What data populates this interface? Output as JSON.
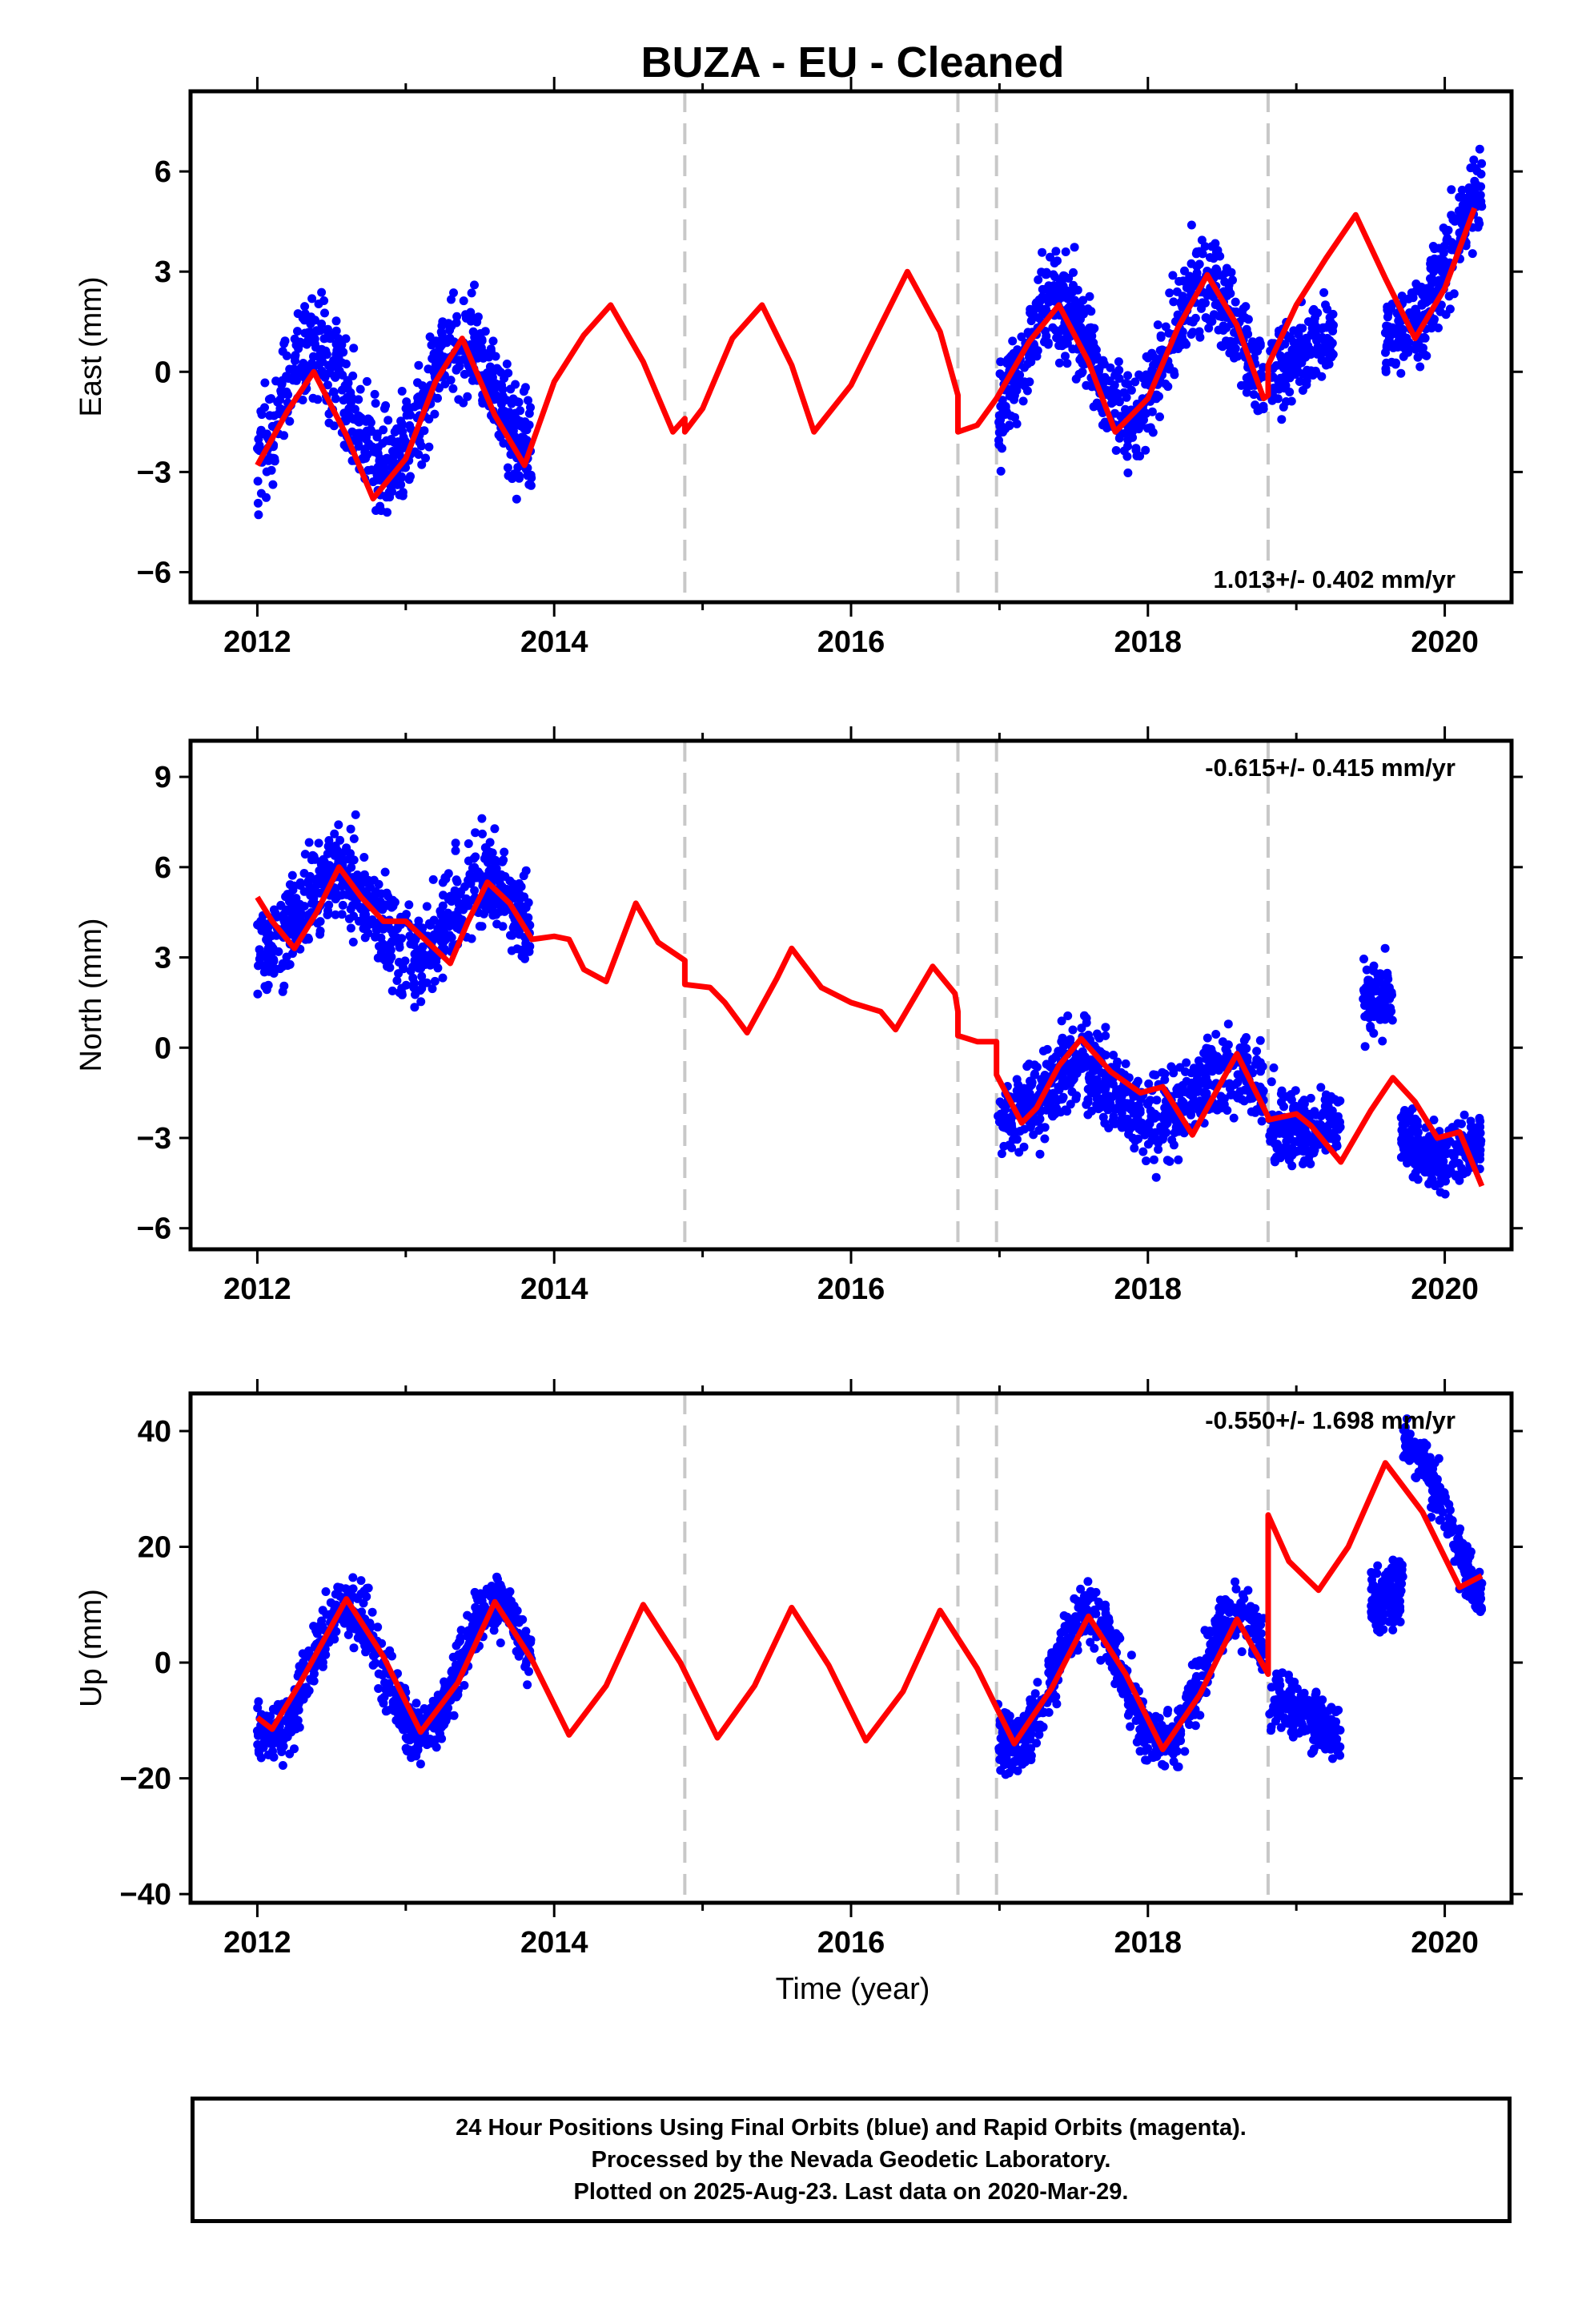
{
  "title": "BUZA  - EU - Cleaned",
  "xlabel": "Time (year)",
  "x_ticks": [
    "2012",
    "2014",
    "2016",
    "2018",
    "2020"
  ],
  "colors": {
    "final_orbits": "#0000ff",
    "model": "#ff0000",
    "offsets": "#c8c8c8",
    "frame": "#000000"
  },
  "footer": [
    "24 Hour Positions Using Final Orbits (blue) and Rapid Orbits (magenta).",
    "Processed by the Nevada Geodetic Laboratory.",
    "Plotted on 2025-Aug-23. Last data on 2020-Mar-29."
  ],
  "chart_data": [
    {
      "type": "scatter",
      "component": "east",
      "ylabel": "East (mm)",
      "rate_label": "1.013+/- 0.402 mm/yr",
      "rate_position": "bottom-right",
      "xlim": [
        2011.55,
        2020.45
      ],
      "ylim": [
        -6.9,
        8.4
      ],
      "y_ticks": [
        -6,
        -3,
        0,
        3,
        6
      ],
      "offset_lines": [
        2014.88,
        2016.72,
        2016.98,
        2018.81
      ],
      "model": {
        "x": [
          2012.0,
          2012.2,
          2012.38,
          2012.6,
          2012.78,
          2013.0,
          2013.2,
          2013.38,
          2013.6,
          2013.8,
          2014.0,
          2014.2,
          2014.38,
          2014.6,
          2014.8,
          2014.88,
          2014.88,
          2015.0,
          2015.2,
          2015.4,
          2015.6,
          2015.75,
          2016.0,
          2016.2,
          2016.38,
          2016.6,
          2016.72,
          2016.72,
          2016.85,
          2016.98,
          2016.98,
          2017.2,
          2017.4,
          2017.6,
          2017.78,
          2018.0,
          2018.2,
          2018.4,
          2018.6,
          2018.78,
          2018.81,
          2018.81,
          2019.0,
          2019.2,
          2019.4,
          2019.6,
          2019.8,
          2020.0,
          2020.2
        ],
        "y": [
          -2.8,
          -1.2,
          0.0,
          -1.9,
          -3.8,
          -2.6,
          -0.3,
          1.0,
          -1.3,
          -2.8,
          -0.3,
          1.1,
          2.0,
          0.3,
          -1.8,
          -1.4,
          -1.8,
          -1.1,
          1.0,
          2.0,
          0.2,
          -1.8,
          -0.4,
          1.4,
          3.0,
          1.2,
          -0.7,
          -1.8,
          -1.6,
          -0.8,
          -0.8,
          0.9,
          2.0,
          0.3,
          -1.8,
          -0.8,
          1.3,
          2.9,
          1.4,
          -0.8,
          -0.7,
          0.2,
          2.0,
          3.4,
          4.7,
          2.8,
          1.0,
          2.5,
          4.9
        ]
      },
      "scatter": [
        {
          "x0": 2012.0,
          "x1": 2013.85,
          "amp": 1.8,
          "peak": 2012.38,
          "trend": [
            -1.4,
            -0.6
          ],
          "noise": 1.3
        },
        {
          "x0": 2016.99,
          "x1": 2018.78,
          "amp": 1.9,
          "peak": 2017.38,
          "trend": [
            0.0,
            1.1
          ],
          "noise": 1.2
        },
        {
          "x0": 2018.82,
          "x1": 2019.25,
          "amp": 0.3,
          "peak": 2019.38,
          "trend": [
            0.3,
            0.9
          ],
          "noise": 1.0
        },
        {
          "x0": 2019.6,
          "x1": 2020.25,
          "amp": 1.1,
          "peak": 2020.3,
          "trend": [
            1.6,
            4.6
          ],
          "noise": 1.1
        }
      ]
    },
    {
      "type": "scatter",
      "component": "north",
      "ylabel": "North (mm)",
      "rate_label": "-0.615+/- 0.415 mm/yr",
      "rate_position": "top-right",
      "xlim": [
        2011.55,
        2020.45
      ],
      "ylim": [
        -6.7,
        10.2
      ],
      "y_ticks": [
        -6,
        -3,
        0,
        3,
        6,
        9
      ],
      "offset_lines": [
        2014.88,
        2016.72,
        2016.98,
        2018.81
      ],
      "model": {
        "x": [
          2012.0,
          2012.1,
          2012.25,
          2012.4,
          2012.55,
          2012.7,
          2012.85,
          2013.0,
          2013.15,
          2013.3,
          2013.42,
          2013.55,
          2013.7,
          2013.85,
          2014.0,
          2014.1,
          2014.2,
          2014.35,
          2014.55,
          2014.7,
          2014.88,
          2014.88,
          2015.05,
          2015.15,
          2015.3,
          2015.5,
          2015.6,
          2015.8,
          2016.0,
          2016.2,
          2016.3,
          2016.55,
          2016.7,
          2016.72,
          2016.72,
          2016.85,
          2016.98,
          2016.98,
          2017.15,
          2017.25,
          2017.4,
          2017.55,
          2017.75,
          2017.95,
          2018.1,
          2018.3,
          2018.4,
          2018.6,
          2018.81,
          2018.81,
          2019.0,
          2019.1,
          2019.3,
          2019.5,
          2019.65,
          2019.8,
          2019.95,
          2020.1,
          2020.25
        ],
        "y": [
          5.0,
          4.2,
          3.3,
          4.5,
          6.0,
          5.0,
          4.2,
          4.2,
          3.5,
          2.8,
          4.2,
          5.5,
          4.8,
          3.6,
          3.7,
          3.6,
          2.6,
          2.2,
          4.8,
          3.5,
          2.9,
          2.1,
          2.0,
          1.5,
          0.5,
          2.3,
          3.3,
          2.0,
          1.5,
          1.2,
          0.6,
          2.7,
          1.8,
          1.2,
          0.4,
          0.2,
          0.2,
          -0.9,
          -2.5,
          -2.0,
          -0.6,
          0.3,
          -0.8,
          -1.5,
          -1.3,
          -2.9,
          -2.0,
          -0.2,
          -2.3,
          -2.4,
          -2.2,
          -2.6,
          -3.8,
          -2.1,
          -1.0,
          -1.8,
          -3.0,
          -2.8,
          -4.6
        ]
      },
      "scatter": [
        {
          "x0": 2012.0,
          "x1": 2013.85,
          "amp": 1.3,
          "peak": 2012.55,
          "trend": [
            4.6,
            4.2
          ],
          "noise": 1.3
        },
        {
          "x0": 2016.99,
          "x1": 2018.78,
          "amp": 0.9,
          "peak": 2017.55,
          "trend": [
            -1.4,
            -1.6
          ],
          "noise": 1.2
        },
        {
          "x0": 2018.82,
          "x1": 2019.3,
          "amp": 0.3,
          "peak": 2019.5,
          "trend": [
            -2.2,
            -2.6
          ],
          "noise": 1.0
        },
        {
          "x0": 2019.45,
          "x1": 2019.65,
          "amp": 0.0,
          "peak": 2019.5,
          "trend": [
            1.5,
            1.5
          ],
          "noise": 1.0
        },
        {
          "x0": 2019.7,
          "x1": 2020.25,
          "amp": 0.5,
          "peak": 2020.4,
          "trend": [
            -2.8,
            -3.4
          ],
          "noise": 0.9
        }
      ]
    },
    {
      "type": "scatter",
      "component": "up",
      "ylabel": "Up (mm)",
      "rate_label": "-0.550+/- 1.698 mm/yr",
      "rate_position": "top-right",
      "xlim": [
        2011.55,
        2020.45
      ],
      "ylim": [
        -41.5,
        46.5
      ],
      "y_ticks": [
        -40,
        -20,
        0,
        20,
        40
      ],
      "offset_lines": [
        2014.88,
        2016.72,
        2016.98,
        2018.81
      ],
      "model": {
        "x": [
          2012.0,
          2012.1,
          2012.3,
          2012.6,
          2012.85,
          2013.1,
          2013.35,
          2013.6,
          2013.85,
          2014.1,
          2014.35,
          2014.6,
          2014.85,
          2015.1,
          2015.35,
          2015.6,
          2015.85,
          2016.1,
          2016.35,
          2016.6,
          2016.85,
          2017.1,
          2017.35,
          2017.6,
          2017.85,
          2018.1,
          2018.35,
          2018.6,
          2018.81,
          2018.81,
          2018.95,
          2019.15,
          2019.35,
          2019.6,
          2019.85,
          2020.1,
          2020.25
        ],
        "y": [
          -9.5,
          -11.5,
          -3.0,
          11.0,
          1.0,
          -12.0,
          -3.5,
          10.5,
          0.5,
          -12.5,
          -4.0,
          10.0,
          0.0,
          -13.0,
          -4.0,
          9.5,
          -0.5,
          -13.5,
          -5.0,
          9.0,
          -1.0,
          -14.0,
          -4.5,
          8.0,
          -2.0,
          -15.0,
          -5.5,
          7.5,
          -2.0,
          25.5,
          17.5,
          12.5,
          20.0,
          34.5,
          26.0,
          13.0,
          15.0
        ]
      },
      "scatter": [
        {
          "x0": 2012.0,
          "x1": 2013.85,
          "amp": 11.0,
          "peak": 2012.6,
          "trend": [
            -1.5,
            -0.8
          ],
          "noise": 4.5
        },
        {
          "x0": 2016.99,
          "x1": 2018.78,
          "amp": 11.5,
          "peak": 2017.6,
          "trend": [
            -3.0,
            -3.0
          ],
          "noise": 4.5
        },
        {
          "x0": 2018.82,
          "x1": 2019.3,
          "amp": 0.0,
          "peak": 2019.6,
          "trend": [
            -6.0,
            -12.0
          ],
          "noise": 4.0
        },
        {
          "x0": 2019.5,
          "x1": 2019.72,
          "amp": 0.0,
          "peak": 2019.6,
          "trend": [
            10.0,
            14.0
          ],
          "noise": 5.0
        },
        {
          "x0": 2019.72,
          "x1": 2020.25,
          "amp": 8.0,
          "peak": 2019.8,
          "trend": [
            30.0,
            18.0
          ],
          "noise": 4.0
        }
      ]
    }
  ]
}
